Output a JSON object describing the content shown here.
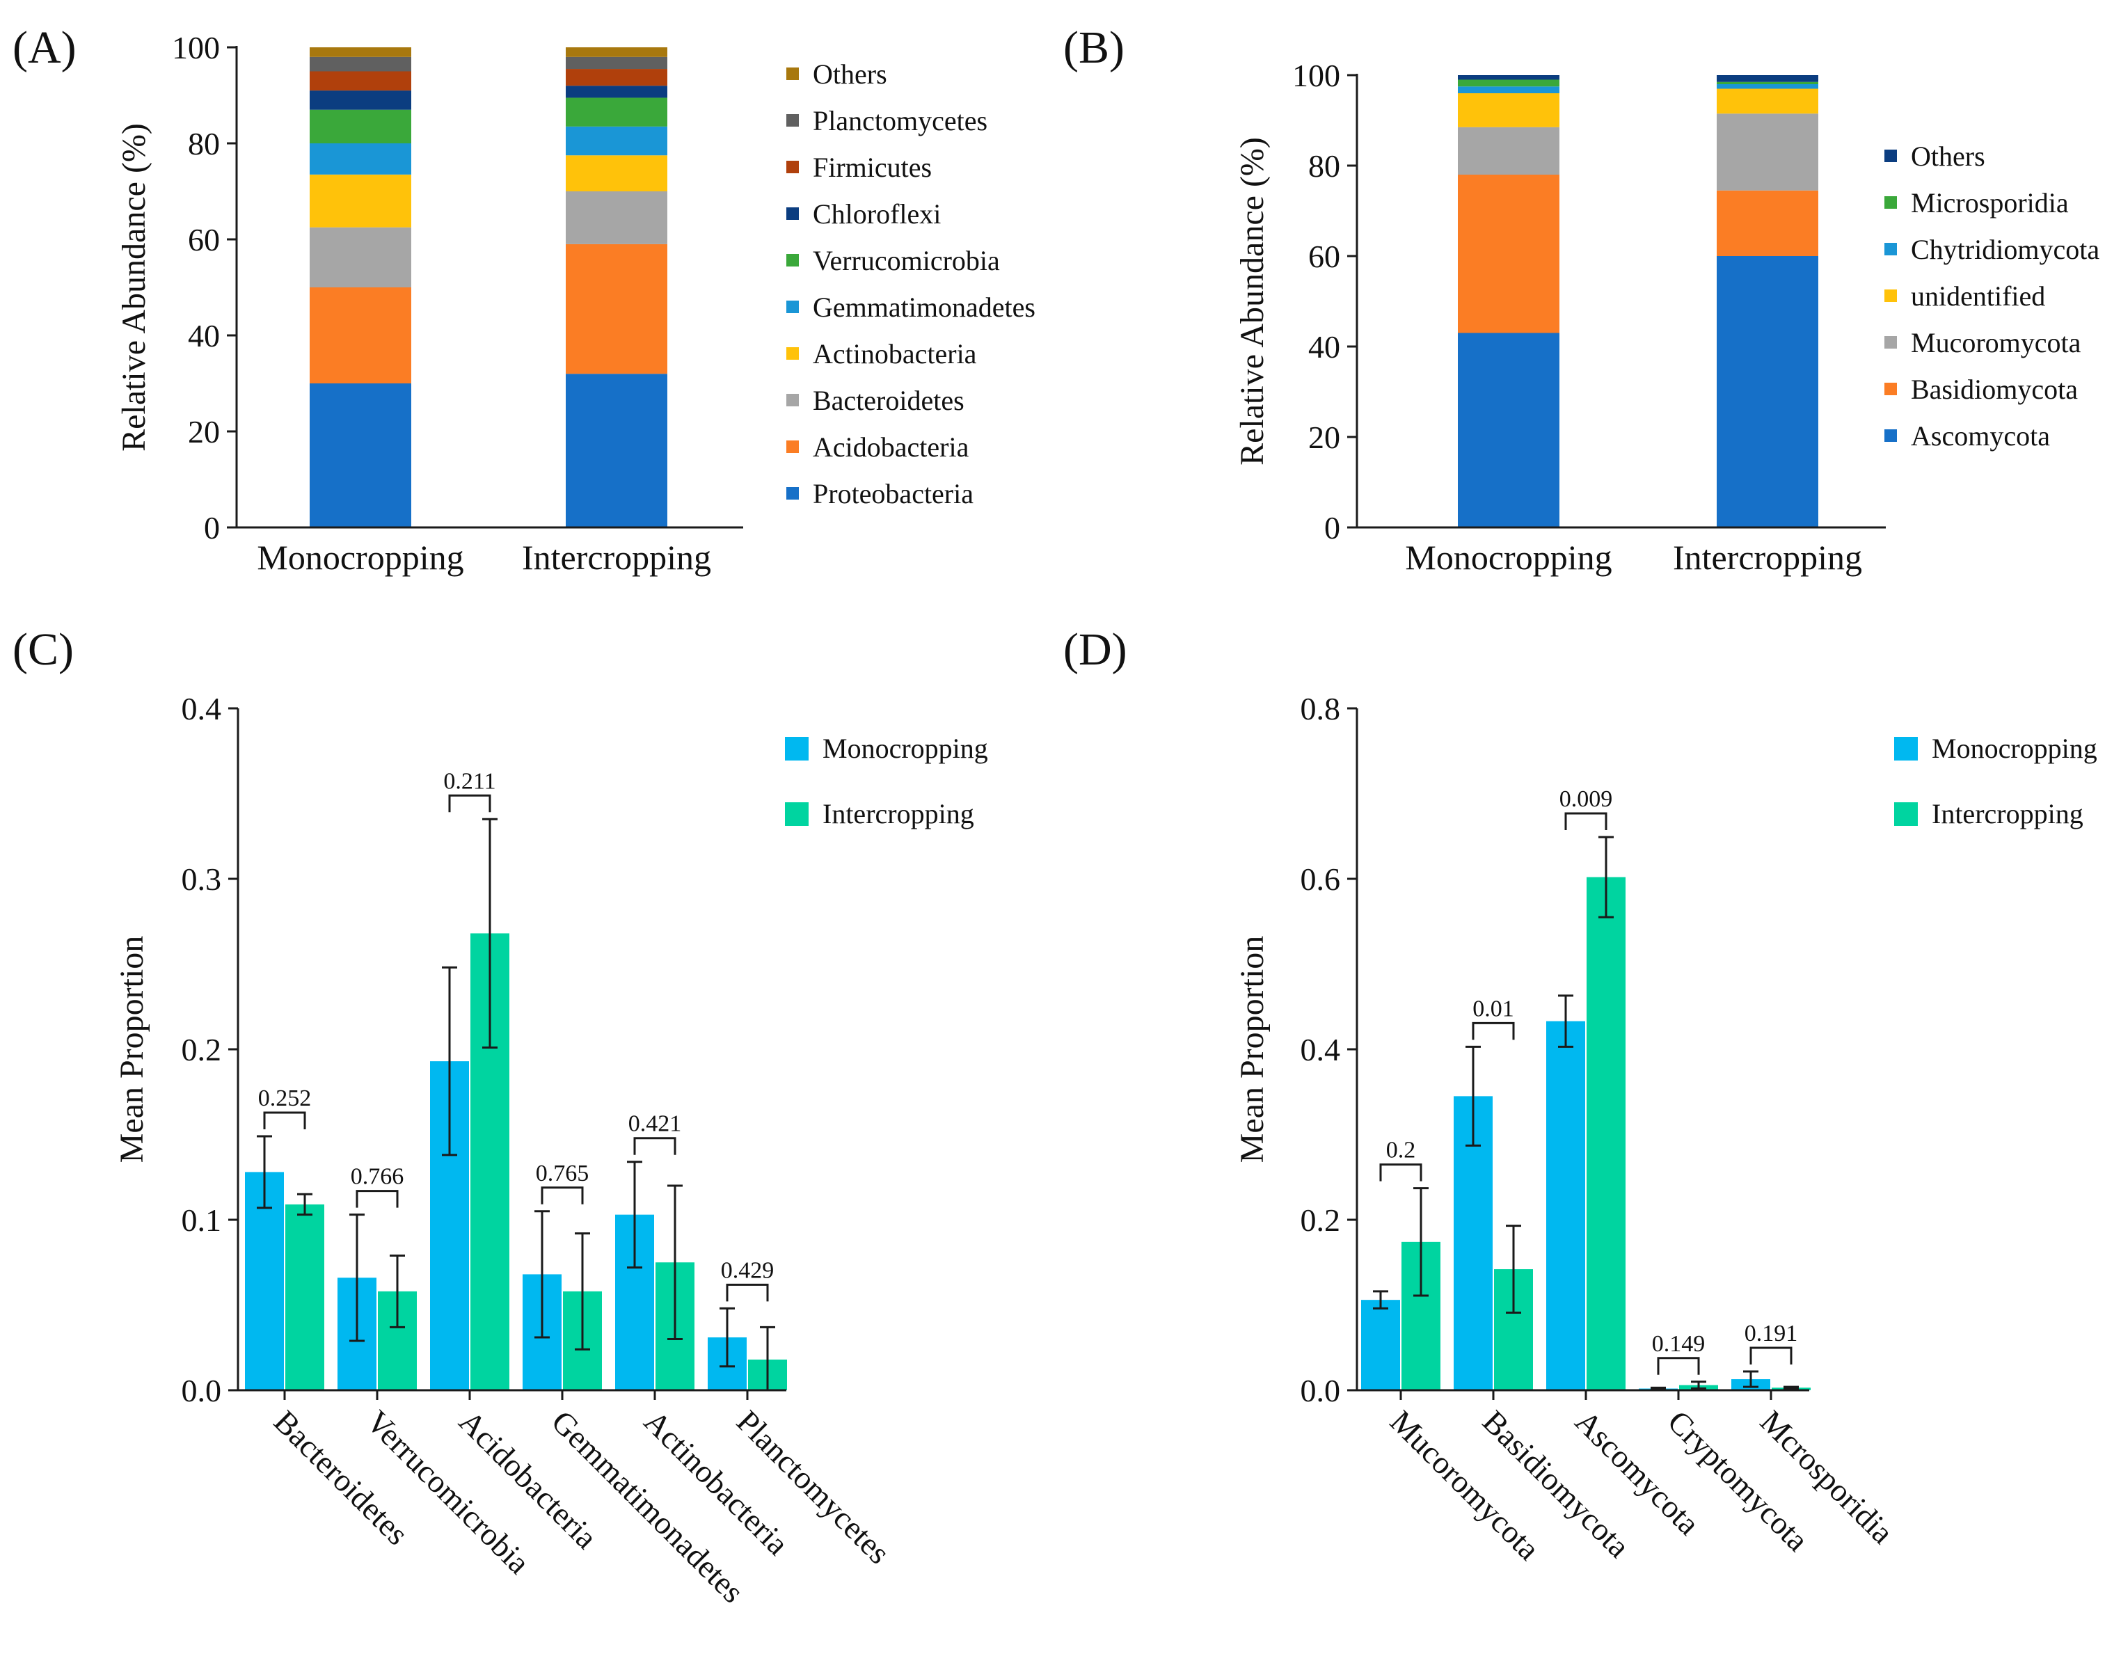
{
  "panels": [
    "(A)",
    "(B)",
    "(C)",
    "(D)"
  ],
  "colors": {
    "axis": "#1a1a1a",
    "monocropping": "#00b8f0",
    "intercropping": "#00d4a0"
  },
  "chart_data": [
    {
      "type": "bar",
      "stacked": true,
      "panel": "(A)",
      "ylabel": "Relative Abundance (%)",
      "xlabel": "",
      "ylim": [
        0,
        100
      ],
      "yticks": [
        0,
        20,
        40,
        60,
        80,
        100
      ],
      "categories": [
        "Monocropping",
        "Intercropping"
      ],
      "legend_position": "right",
      "series": [
        {
          "name": "Proteobacteria",
          "color": "#1670c8",
          "values": [
            30,
            32
          ]
        },
        {
          "name": "Acidobacteria",
          "color": "#fb7d24",
          "values": [
            20,
            27
          ]
        },
        {
          "name": "Bacteroidetes",
          "color": "#a6a6a6",
          "values": [
            12.5,
            11
          ]
        },
        {
          "name": "Actinobacteria",
          "color": "#ffc20a",
          "values": [
            11,
            7.5
          ]
        },
        {
          "name": "Gemmatimonadetes",
          "color": "#1a96d6",
          "values": [
            6.5,
            6
          ]
        },
        {
          "name": "Verrucomicrobia",
          "color": "#3aa83a",
          "values": [
            7,
            6
          ]
        },
        {
          "name": "Chloroflexi",
          "color": "#0b3d80",
          "values": [
            4,
            2.5
          ]
        },
        {
          "name": "Firmicutes",
          "color": "#b0400c",
          "values": [
            4,
            3.5
          ]
        },
        {
          "name": "Planctomycetes",
          "color": "#606060",
          "values": [
            3,
            2.5
          ]
        },
        {
          "name": "Others",
          "color": "#a8780e",
          "values": [
            2,
            2
          ]
        }
      ]
    },
    {
      "type": "bar",
      "stacked": true,
      "panel": "(B)",
      "ylabel": "Relative Abundance (%)",
      "xlabel": "",
      "ylim": [
        0,
        100
      ],
      "yticks": [
        0,
        20,
        40,
        60,
        80,
        100
      ],
      "categories": [
        "Monocropping",
        "Intercropping"
      ],
      "legend_position": "right",
      "series": [
        {
          "name": "Ascomycota",
          "color": "#1670c8",
          "values": [
            43,
            60
          ]
        },
        {
          "name": "Basidiomycota",
          "color": "#fb7d24",
          "values": [
            35,
            14.5
          ]
        },
        {
          "name": "Mucoromycota",
          "color": "#a6a6a6",
          "values": [
            10.5,
            17
          ]
        },
        {
          "name": "unidentified",
          "color": "#ffc20a",
          "values": [
            7.5,
            5.5
          ]
        },
        {
          "name": "Chytridiomycota",
          "color": "#1a96d6",
          "values": [
            1.5,
            1
          ]
        },
        {
          "name": "Microsporidia",
          "color": "#3aa83a",
          "values": [
            1.5,
            0.5
          ]
        },
        {
          "name": "Others",
          "color": "#0b3d80",
          "values": [
            1,
            1.5
          ]
        }
      ]
    },
    {
      "type": "bar",
      "grouped": true,
      "panel": "(C)",
      "ylabel": "Mean Proportion",
      "xlabel": "",
      "ylim": [
        0,
        0.4
      ],
      "yticks": [
        "0.0",
        "0.1",
        "0.2",
        "0.3",
        "0.4"
      ],
      "categories": [
        "Bacteroidetes",
        "Verrucomicrobia",
        "Acidobacteria",
        "Gemmatimonadetes",
        "Actinobacteria",
        "Planctomycetes"
      ],
      "pvalues": [
        "0.252",
        "0.766",
        "0.211",
        "0.765",
        "0.421",
        "0.429"
      ],
      "legend_position": "top-right",
      "series": [
        {
          "name": "Monocropping",
          "values": [
            0.128,
            0.066,
            0.193,
            0.068,
            0.103,
            0.031
          ],
          "errors": [
            0.021,
            0.037,
            0.055,
            0.037,
            0.031,
            0.017
          ]
        },
        {
          "name": "Intercropping",
          "values": [
            0.109,
            0.058,
            0.268,
            0.058,
            0.075,
            0.018
          ],
          "errors": [
            0.006,
            0.021,
            0.067,
            0.034,
            0.045,
            0.019
          ]
        }
      ]
    },
    {
      "type": "bar",
      "grouped": true,
      "panel": "(D)",
      "ylabel": "Mean Proportion",
      "xlabel": "",
      "ylim": [
        0,
        0.8
      ],
      "yticks": [
        "0.0",
        "0.2",
        "0.4",
        "0.6",
        "0.8"
      ],
      "categories": [
        "Mucoromycota",
        "Basidiomycota",
        "Ascomycota",
        "Cryptomycota",
        "Mcrosporidia"
      ],
      "pvalues": [
        "0.2",
        "0.01",
        "0.009",
        "0.149",
        "0.191"
      ],
      "legend_position": "top-right",
      "series": [
        {
          "name": "Monocropping",
          "values": [
            0.106,
            0.345,
            0.433,
            0.002,
            0.013
          ],
          "errors": [
            0.01,
            0.058,
            0.03,
            0.001,
            0.009
          ]
        },
        {
          "name": "Intercropping",
          "values": [
            0.174,
            0.142,
            0.602,
            0.006,
            0.003
          ],
          "errors": [
            0.063,
            0.051,
            0.047,
            0.004,
            0.001
          ]
        }
      ]
    }
  ]
}
